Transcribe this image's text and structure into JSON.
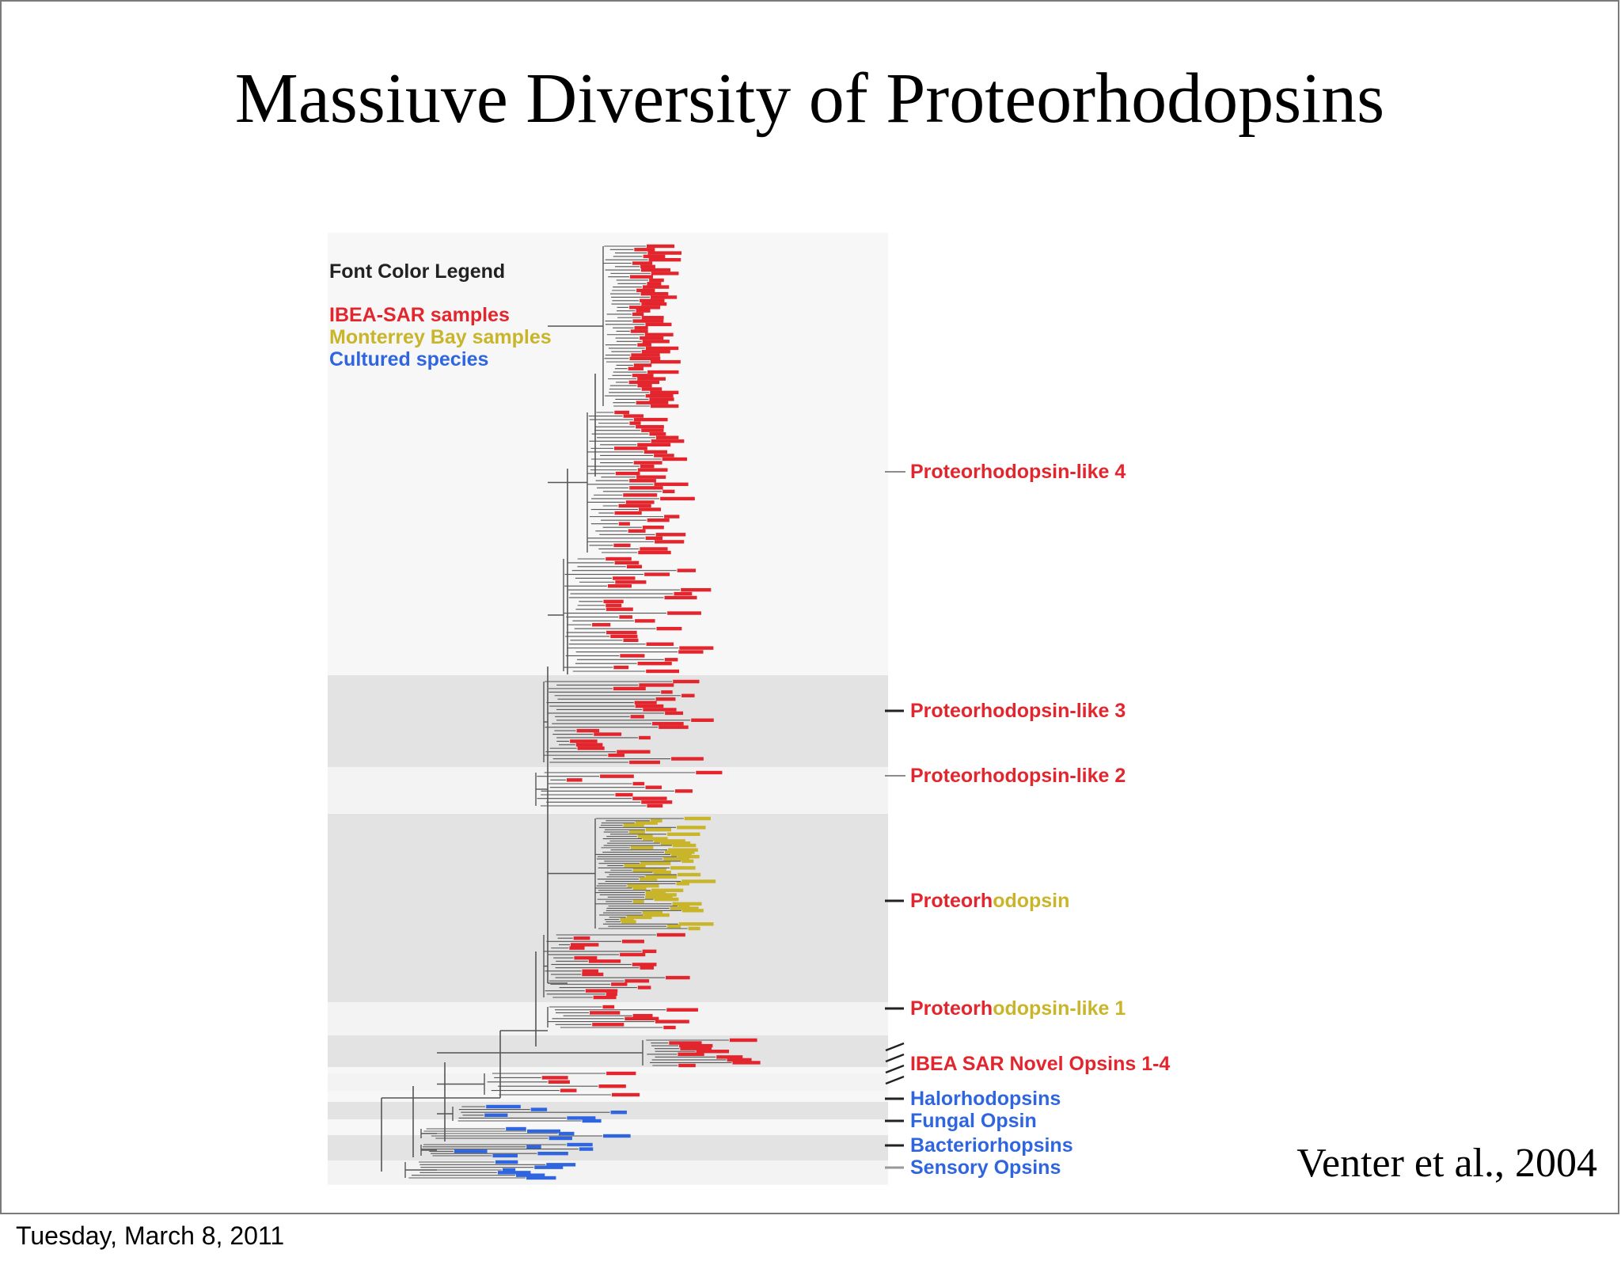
{
  "slide": {
    "title": "Massiuve Diversity of Proteorhodopsins",
    "citation": "Venter et al., 2004",
    "footer_date": "Tuesday, March 8, 2011"
  },
  "colors": {
    "ibea_red": "#e3262e",
    "monterey_yellow": "#c9b52a",
    "cultured_blue": "#2f66e0",
    "branch": "#555555",
    "band_shade": "#e3e3e3",
    "band_light": "#f3f3f3"
  },
  "legend": {
    "title": "Font Color Legend",
    "items": [
      {
        "label": "IBEA-SAR samples",
        "color": "#e3262e"
      },
      {
        "label": "Monterrey Bay samples",
        "color": "#c9b52a"
      },
      {
        "label": "Cultured species",
        "color": "#2f66e0"
      }
    ]
  },
  "clades": [
    {
      "id": "pr-like-4",
      "parts": [
        {
          "text": "Proteorhodopsin-like 4",
          "color": "#e3262e"
        }
      ]
    },
    {
      "id": "pr-like-3",
      "parts": [
        {
          "text": "Proteorhodopsin-like 3",
          "color": "#e3262e"
        }
      ]
    },
    {
      "id": "pr-like-2",
      "parts": [
        {
          "text": "Proteorhodopsin-like 2",
          "color": "#e3262e"
        }
      ]
    },
    {
      "id": "proteorhodopsin",
      "parts": [
        {
          "text": "Proteorh",
          "color": "#e3262e"
        },
        {
          "text": "odopsin",
          "color": "#c9b52a"
        }
      ]
    },
    {
      "id": "pr-like-1",
      "parts": [
        {
          "text": "Proteorh",
          "color": "#e3262e"
        },
        {
          "text": "odopsin-like 1",
          "color": "#c9b52a"
        }
      ]
    },
    {
      "id": "ibea-novel",
      "parts": [
        {
          "text": "IBEA SAR Novel Opsins 1-4",
          "color": "#e3262e"
        }
      ]
    },
    {
      "id": "halorhodopsins",
      "parts": [
        {
          "text": "Halorhodopsins",
          "color": "#2f66e0"
        }
      ]
    },
    {
      "id": "fungal-opsin",
      "parts": [
        {
          "text": "Fungal Opsin",
          "color": "#2f66e0"
        }
      ]
    },
    {
      "id": "bacteriorhopsins",
      "parts": [
        {
          "text": "Bacteriorhopsins",
          "color": "#2f66e0"
        }
      ]
    },
    {
      "id": "sensory-opsins",
      "parts": [
        {
          "text": "Sensory Opsins",
          "color": "#2f66e0"
        }
      ]
    }
  ]
}
